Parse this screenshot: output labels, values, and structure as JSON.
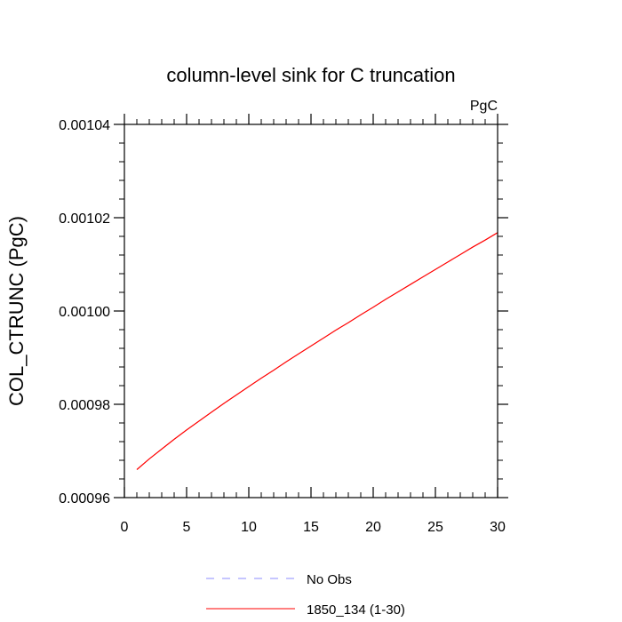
{
  "chart_data": {
    "type": "line",
    "title": "column-level sink for C truncation",
    "units_label": "PgC",
    "xlabel": "",
    "ylabel": "COL_CTRUNC  (PgC)",
    "xlim": [
      0,
      30
    ],
    "ylim": [
      0.00096,
      0.00104
    ],
    "x_ticks": [
      0,
      5,
      10,
      15,
      20,
      25,
      30
    ],
    "x_tick_labels": [
      "0",
      "5",
      "10",
      "15",
      "20",
      "25",
      "30"
    ],
    "y_ticks": [
      0.00096,
      0.00098,
      0.001,
      0.00102,
      0.00104
    ],
    "y_tick_labels": [
      "0.00096",
      "0.00098",
      "0.00100",
      "0.00102",
      "0.00104"
    ],
    "grid": false,
    "legend_position": "bottom",
    "series": [
      {
        "name": "No Obs",
        "color": "#8c8cff",
        "style": "dashed",
        "x": [],
        "y": []
      },
      {
        "name": "1850_134 (1-30)",
        "color": "#ff0000",
        "style": "solid",
        "x": [
          1,
          2,
          3,
          4,
          5,
          6,
          7,
          8,
          9,
          10,
          11,
          12,
          13,
          14,
          15,
          16,
          17,
          18,
          19,
          20,
          21,
          22,
          23,
          24,
          25,
          26,
          27,
          28,
          29,
          30
        ],
        "y": [
          0.000966,
          0.0009683,
          0.0009704,
          0.0009725,
          0.0009745,
          0.0009764,
          0.0009783,
          0.0009802,
          0.000982,
          0.0009838,
          0.0009856,
          0.0009873,
          0.0009891,
          0.0009908,
          0.0009925,
          0.0009942,
          0.0009959,
          0.0009975,
          0.0009992,
          0.0010008,
          0.0010025,
          0.0010041,
          0.0010057,
          0.0010073,
          0.0010089,
          0.0010105,
          0.0010121,
          0.0010137,
          0.0010152,
          0.0010168
        ]
      }
    ]
  }
}
